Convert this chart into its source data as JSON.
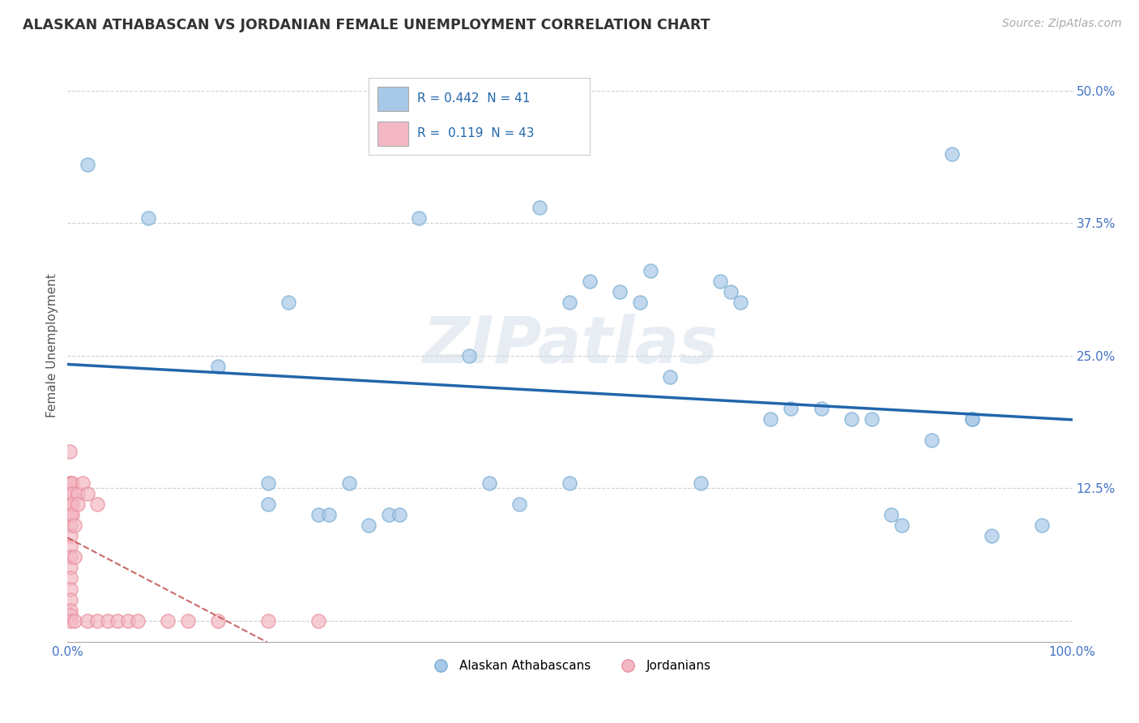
{
  "title": "ALASKAN ATHABASCAN VS JORDANIAN FEMALE UNEMPLOYMENT CORRELATION CHART",
  "source": "Source: ZipAtlas.com",
  "ylabel_label": "Female Unemployment",
  "watermark": "ZIPatlas",
  "xlim": [
    0.0,
    1.0
  ],
  "ylim": [
    -0.02,
    0.54
  ],
  "xticks": [
    0.0,
    0.25,
    0.5,
    0.75,
    1.0
  ],
  "xtick_labels": [
    "0.0%",
    "",
    "",
    "",
    "100.0%"
  ],
  "yticks": [
    0.0,
    0.125,
    0.25,
    0.375,
    0.5
  ],
  "ytick_labels_right": [
    "",
    "12.5%",
    "25.0%",
    "37.5%",
    "50.0%"
  ],
  "legend_text_blue": "R = 0.442  N = 41",
  "legend_text_pink": "R =  0.119  N = 43",
  "blue_marker_color": "#a8c8e8",
  "blue_edge_color": "#7bafd4",
  "pink_marker_color": "#f4b8c4",
  "pink_edge_color": "#e8909d",
  "blue_line_color": "#2166ac",
  "pink_line_color": "#c0504d",
  "blue_scatter": [
    [
      0.02,
      0.43
    ],
    [
      0.08,
      0.38
    ],
    [
      0.15,
      0.24
    ],
    [
      0.2,
      0.11
    ],
    [
      0.2,
      0.13
    ],
    [
      0.22,
      0.3
    ],
    [
      0.25,
      0.1
    ],
    [
      0.26,
      0.1
    ],
    [
      0.28,
      0.13
    ],
    [
      0.3,
      0.09
    ],
    [
      0.32,
      0.1
    ],
    [
      0.33,
      0.1
    ],
    [
      0.35,
      0.38
    ],
    [
      0.4,
      0.25
    ],
    [
      0.42,
      0.13
    ],
    [
      0.45,
      0.11
    ],
    [
      0.47,
      0.39
    ],
    [
      0.5,
      0.3
    ],
    [
      0.5,
      0.13
    ],
    [
      0.52,
      0.32
    ],
    [
      0.55,
      0.31
    ],
    [
      0.57,
      0.3
    ],
    [
      0.58,
      0.33
    ],
    [
      0.6,
      0.23
    ],
    [
      0.63,
      0.13
    ],
    [
      0.65,
      0.32
    ],
    [
      0.66,
      0.31
    ],
    [
      0.67,
      0.3
    ],
    [
      0.7,
      0.19
    ],
    [
      0.72,
      0.2
    ],
    [
      0.75,
      0.2
    ],
    [
      0.78,
      0.19
    ],
    [
      0.8,
      0.19
    ],
    [
      0.82,
      0.1
    ],
    [
      0.83,
      0.09
    ],
    [
      0.86,
      0.17
    ],
    [
      0.88,
      0.44
    ],
    [
      0.9,
      0.19
    ],
    [
      0.9,
      0.19
    ],
    [
      0.92,
      0.08
    ],
    [
      0.97,
      0.09
    ]
  ],
  "pink_scatter": [
    [
      0.002,
      0.16
    ],
    [
      0.003,
      0.13
    ],
    [
      0.003,
      0.13
    ],
    [
      0.003,
      0.12
    ],
    [
      0.003,
      0.12
    ],
    [
      0.003,
      0.11
    ],
    [
      0.003,
      0.11
    ],
    [
      0.003,
      0.1
    ],
    [
      0.003,
      0.1
    ],
    [
      0.003,
      0.09
    ],
    [
      0.003,
      0.08
    ],
    [
      0.003,
      0.07
    ],
    [
      0.003,
      0.06
    ],
    [
      0.003,
      0.05
    ],
    [
      0.003,
      0.04
    ],
    [
      0.003,
      0.03
    ],
    [
      0.003,
      0.02
    ],
    [
      0.003,
      0.01
    ],
    [
      0.003,
      0.005
    ],
    [
      0.003,
      0.0
    ],
    [
      0.005,
      0.13
    ],
    [
      0.005,
      0.12
    ],
    [
      0.005,
      0.11
    ],
    [
      0.005,
      0.1
    ],
    [
      0.007,
      0.09
    ],
    [
      0.007,
      0.06
    ],
    [
      0.007,
      0.0
    ],
    [
      0.01,
      0.12
    ],
    [
      0.01,
      0.11
    ],
    [
      0.015,
      0.13
    ],
    [
      0.02,
      0.12
    ],
    [
      0.02,
      0.0
    ],
    [
      0.03,
      0.11
    ],
    [
      0.03,
      0.0
    ],
    [
      0.04,
      0.0
    ],
    [
      0.05,
      0.0
    ],
    [
      0.06,
      0.0
    ],
    [
      0.07,
      0.0
    ],
    [
      0.1,
      0.0
    ],
    [
      0.12,
      0.0
    ],
    [
      0.15,
      0.0
    ],
    [
      0.2,
      0.0
    ],
    [
      0.25,
      0.0
    ]
  ],
  "background_color": "#ffffff",
  "grid_color": "#cccccc"
}
